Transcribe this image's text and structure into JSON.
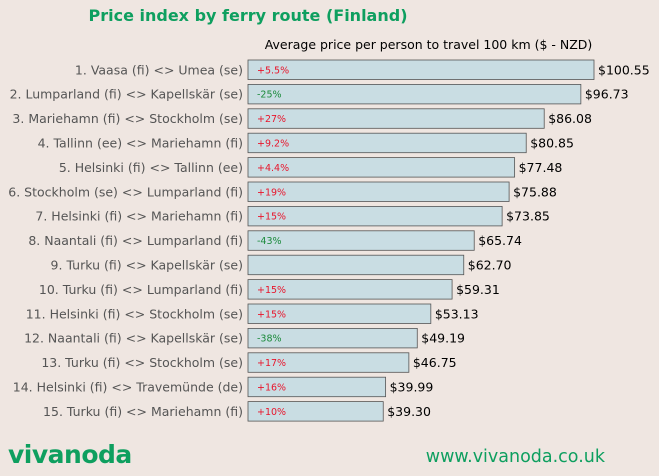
{
  "chart_data": {
    "type": "bar",
    "orientation": "horizontal",
    "title": "Price index by ferry route (Finland)",
    "subtitle": "Average price per person to travel 100 km ($ - NZD)",
    "value_prefix": "$",
    "xlim": [
      0,
      100.55
    ],
    "grid": false,
    "legend": "none",
    "bar_color": "#c9dde3",
    "bar_edge_color": "#555555",
    "positive_change_color": "#e8152b",
    "negative_change_color": "#1b8a3b",
    "categories": [
      "1. Vaasa (fi) <> Umea (se)",
      "2. Lumparland (fi) <> Kapellskär (se)",
      "3. Mariehamn (fi) <> Stockholm (se)",
      "4. Tallinn (ee) <> Mariehamn (fi)",
      "5. Helsinki (fi) <> Tallinn (ee)",
      "6. Stockholm (se) <> Lumparland (fi)",
      "7. Helsinki (fi) <> Mariehamn (fi)",
      "8. Naantali (fi) <> Lumparland (fi)",
      "9. Turku (fi) <> Kapellskär (se)",
      "10. Turku (fi) <> Lumparland (fi)",
      "11. Helsinki (fi) <> Stockholm (se)",
      "12. Naantali (fi) <> Kapellskär (se)",
      "13. Turku (fi) <> Stockholm (se)",
      "14. Helsinki (fi) <> Travemünde (de)",
      "15. Turku (fi) <> Mariehamn (fi)"
    ],
    "values": [
      100.55,
      96.73,
      86.08,
      80.85,
      77.48,
      75.88,
      73.85,
      65.74,
      62.7,
      59.31,
      53.13,
      49.19,
      46.75,
      39.99,
      39.3
    ],
    "value_labels": [
      "$100.55",
      "$96.73",
      "$86.08",
      "$80.85",
      "$77.48",
      "$75.88",
      "$73.85",
      "$65.74",
      "$62.70",
      "$59.31",
      "$53.13",
      "$49.19",
      "$46.75",
      "$39.99",
      "$39.30"
    ],
    "changes": [
      "+5.5%",
      "-25%",
      "+27%",
      "+9.2%",
      "+4.4%",
      "+19%",
      "+15%",
      "-43%",
      "",
      "+15%",
      "+15%",
      "-38%",
      "+17%",
      "+16%",
      "+10%"
    ]
  },
  "footer": {
    "brand": "vivanoda",
    "website": "www.vivanoda.co.uk"
  }
}
